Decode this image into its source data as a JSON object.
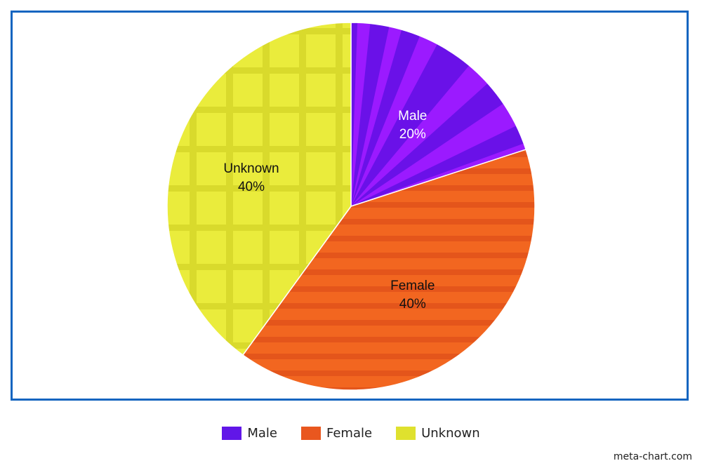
{
  "chart_data": {
    "type": "pie",
    "title": "",
    "slices": [
      {
        "label": "Male",
        "value": 20,
        "display": "20%",
        "color": "#6a11e8",
        "pattern_color": "#9b1aff",
        "pattern": "diagonal-stripes",
        "text_color": "#ffffff"
      },
      {
        "label": "Female",
        "value": 40,
        "display": "40%",
        "color": "#f26620",
        "pattern_color": "#e4551b",
        "pattern": "horizontal-stripes",
        "text_color": "#111111"
      },
      {
        "label": "Unknown",
        "value": 40,
        "display": "40%",
        "color": "#eaec3c",
        "pattern_color": "#d9da2c",
        "pattern": "grid",
        "text_color": "#111111"
      }
    ],
    "legend": {
      "position": "bottom-center",
      "items": [
        {
          "label": "Male",
          "color": "#6116e8"
        },
        {
          "label": "Female",
          "color": "#e9571f"
        },
        {
          "label": "Unknown",
          "color": "#dfe12e"
        }
      ]
    },
    "frame_color": "#1565c0"
  },
  "credit": "meta-chart.com"
}
